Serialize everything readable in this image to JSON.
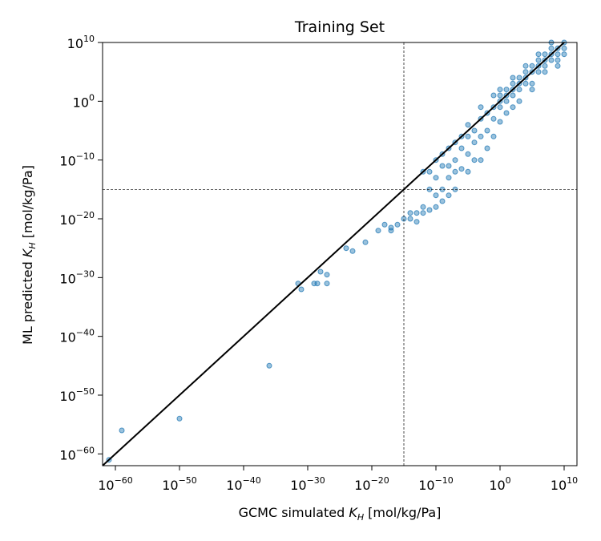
{
  "chart_data": {
    "type": "scatter",
    "title": "Training Set",
    "xlabel": {
      "prefix": "GCMC simulated ",
      "var": "K",
      "sub": "H",
      "suffix": " [mol/kg/Pa]"
    },
    "ylabel": {
      "prefix": "ML predicted ",
      "var": "K",
      "sub": "H",
      "suffix": " [mol/kg/Pa]"
    },
    "scale": "log10",
    "xlim_exp": [
      -62,
      12
    ],
    "ylim_exp": [
      -62,
      10
    ],
    "xticks": [
      {
        "base": "10",
        "exp": "−60",
        "value": -60
      },
      {
        "base": "10",
        "exp": "−50",
        "value": -50
      },
      {
        "base": "10",
        "exp": "−40",
        "value": -40
      },
      {
        "base": "10",
        "exp": "−30",
        "value": -30
      },
      {
        "base": "10",
        "exp": "−20",
        "value": -20
      },
      {
        "base": "10",
        "exp": "−10",
        "value": -10
      },
      {
        "base": "10",
        "exp": "0",
        "value": 0
      },
      {
        "base": "10",
        "exp": "10",
        "value": 10
      }
    ],
    "yticks": [
      {
        "base": "10",
        "exp": "−60",
        "value": -60
      },
      {
        "base": "10",
        "exp": "−50",
        "value": -50
      },
      {
        "base": "10",
        "exp": "−40",
        "value": -40
      },
      {
        "base": "10",
        "exp": "−30",
        "value": -30
      },
      {
        "base": "10",
        "exp": "−20",
        "value": -20
      },
      {
        "base": "10",
        "exp": "−10",
        "value": -10
      },
      {
        "base": "10",
        "exp": "0",
        "value": 0
      },
      {
        "base": "10",
        "exp": "10",
        "value": 10
      }
    ],
    "reference_line": {
      "type": "y=x",
      "color": "#000000"
    },
    "threshold_lines": {
      "x_exp": -15,
      "y_exp": -15,
      "style": "dashed",
      "color": "#000000"
    },
    "series": [
      {
        "name": "Training Set",
        "color": "#1f77b4",
        "points": [
          [
            -61,
            -61
          ],
          [
            -59,
            -56
          ],
          [
            -50,
            -54
          ],
          [
            -36,
            -45
          ],
          [
            -31,
            -32
          ],
          [
            -31.5,
            -31
          ],
          [
            -29,
            -31
          ],
          [
            -28.5,
            -31
          ],
          [
            -28,
            -29
          ],
          [
            -27,
            -31
          ],
          [
            -27,
            -29.5
          ],
          [
            -24,
            -25
          ],
          [
            -23,
            -25.5
          ],
          [
            -21,
            -24
          ],
          [
            -19,
            -22
          ],
          [
            -18,
            -21
          ],
          [
            -17,
            -22
          ],
          [
            -16,
            -21
          ],
          [
            -14,
            -20
          ],
          [
            -13,
            -20.5
          ],
          [
            -14,
            -19
          ],
          [
            -12,
            -19
          ],
          [
            -12,
            -18
          ],
          [
            -11,
            -18.5
          ],
          [
            -10,
            -18
          ],
          [
            -9,
            -17
          ],
          [
            -8,
            -16
          ],
          [
            -7,
            -15
          ],
          [
            -17,
            -21.5
          ],
          [
            -15,
            -20
          ],
          [
            -13,
            -19
          ],
          [
            -11,
            -15
          ],
          [
            -10,
            -16
          ],
          [
            -9,
            -15
          ],
          [
            -8,
            -13
          ],
          [
            -7,
            -10
          ],
          [
            -6,
            -11.5
          ],
          [
            -6,
            -8
          ],
          [
            -5,
            -12
          ],
          [
            -5,
            -9
          ],
          [
            -4,
            -10
          ],
          [
            -4,
            -7
          ],
          [
            -3,
            -10
          ],
          [
            -3,
            -6
          ],
          [
            -2,
            -5
          ],
          [
            -2,
            -8
          ],
          [
            -1,
            -3
          ],
          [
            -1,
            -6
          ],
          [
            0,
            -1
          ],
          [
            0,
            -3.5
          ],
          [
            0,
            2
          ],
          [
            1,
            0
          ],
          [
            1,
            -2
          ],
          [
            2,
            3
          ],
          [
            2,
            1
          ],
          [
            2,
            -1
          ],
          [
            3,
            4
          ],
          [
            3,
            2
          ],
          [
            4,
            5
          ],
          [
            4,
            3
          ],
          [
            5,
            6
          ],
          [
            5,
            3
          ],
          [
            6,
            7
          ],
          [
            6,
            5
          ],
          [
            7,
            8
          ],
          [
            7,
            6
          ],
          [
            8,
            9
          ],
          [
            8,
            8
          ],
          [
            9,
            9
          ],
          [
            9,
            7
          ],
          [
            10,
            10
          ],
          [
            10,
            8
          ],
          [
            -10,
            -13
          ],
          [
            -9,
            -11
          ],
          [
            -8,
            -11
          ],
          [
            -7,
            -12
          ],
          [
            -6,
            -6
          ],
          [
            -5,
            -6
          ],
          [
            -4,
            -5
          ],
          [
            -3,
            -3
          ],
          [
            -2,
            -2
          ],
          [
            -1,
            -1
          ],
          [
            0,
            0
          ],
          [
            1,
            2
          ],
          [
            2,
            2
          ],
          [
            3,
            3
          ],
          [
            4,
            4
          ],
          [
            5,
            5
          ],
          [
            6,
            6
          ],
          [
            7,
            7
          ],
          [
            8,
            7
          ],
          [
            9,
            8
          ],
          [
            10,
            9
          ],
          [
            3,
            0
          ],
          [
            5,
            2
          ],
          [
            7,
            5
          ],
          [
            9,
            6
          ],
          [
            -12,
            -12
          ],
          [
            -11,
            -12
          ],
          [
            -10,
            -10
          ],
          [
            -9,
            -9
          ],
          [
            -8,
            -8
          ],
          [
            -7,
            -7
          ],
          [
            -1,
            1
          ],
          [
            0,
            1
          ],
          [
            1,
            1
          ],
          [
            -5,
            -4
          ],
          [
            -3,
            -1
          ],
          [
            2,
            4
          ],
          [
            4,
            6
          ],
          [
            6,
            8
          ],
          [
            8,
            10
          ]
        ]
      }
    ]
  }
}
